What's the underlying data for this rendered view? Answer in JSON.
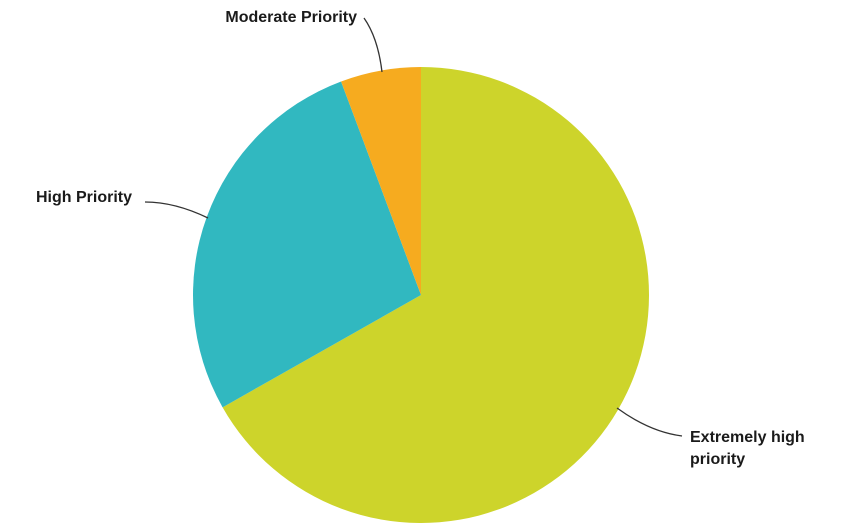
{
  "chart_data": {
    "type": "pie",
    "title": "",
    "start_angle_deg": 0,
    "direction": "clockwise",
    "legend": "none",
    "slices": [
      {
        "label": "Extremely high priority",
        "label_lines": [
          "Extremely high",
          "priority"
        ],
        "value": 66.8,
        "color": "#cdd42b"
      },
      {
        "label": "High Priority",
        "label_lines": [
          "High Priority"
        ],
        "value": 27.5,
        "color": "#31b8c0"
      },
      {
        "label": "Moderate Priority",
        "label_lines": [
          "Moderate Priority"
        ],
        "value": 5.7,
        "color": "#f6ab1f"
      }
    ]
  }
}
